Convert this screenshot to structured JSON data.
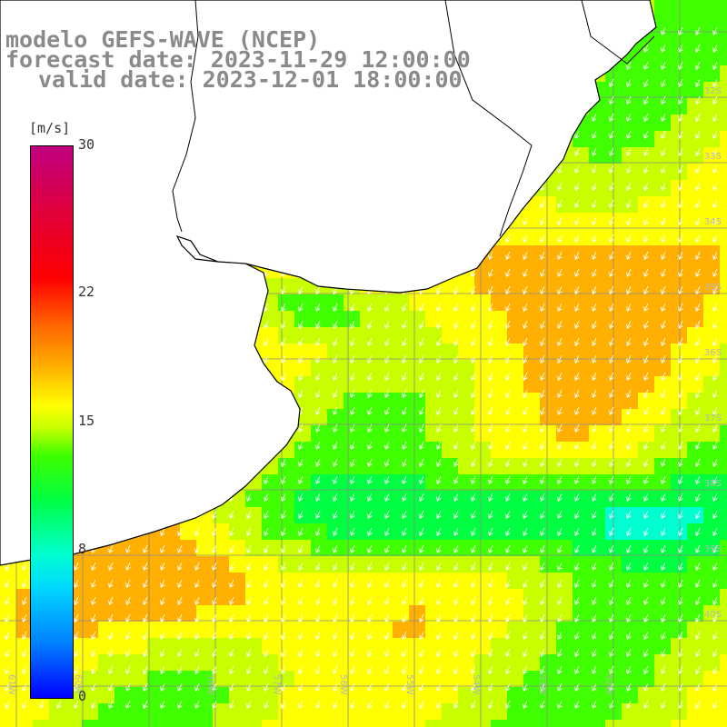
{
  "title": {
    "line1": "modelo GEFS-WAVE (NCEP)",
    "line2": "forecast date: 2023-11-29 12:00:00",
    "line3": "valid date: 2023-12-01 18:00:00"
  },
  "colorbar": {
    "unit": "[m/s]",
    "ticks": [
      {
        "label": "30",
        "value": 30
      },
      {
        "label": "22",
        "value": 22
      },
      {
        "label": "15",
        "value": 15
      },
      {
        "label": "8",
        "value": 8
      },
      {
        "label": "0",
        "value": 0
      }
    ],
    "colors": [
      "#0000ff",
      "#0080ff",
      "#00d8ff",
      "#00ffd0",
      "#00ff40",
      "#40ff00",
      "#c8ff00",
      "#ffff00",
      "#ffb000",
      "#ff6000",
      "#ff0000",
      "#c00080"
    ]
  },
  "map": {
    "lat_labels": [
      {
        "label": "32S",
        "lat": -32
      },
      {
        "label": "33S",
        "lat": -33
      },
      {
        "label": "34S",
        "lat": -34
      },
      {
        "label": "35S",
        "lat": -35
      },
      {
        "label": "36S",
        "lat": -36
      },
      {
        "label": "37S",
        "lat": -37
      },
      {
        "label": "38S",
        "lat": -38
      },
      {
        "label": "39S",
        "lat": -39
      },
      {
        "label": "40S",
        "lat": -40
      }
    ],
    "lon_labels": [
      {
        "label": "61W",
        "lon": -61
      },
      {
        "label": "60W",
        "lon": -60
      },
      {
        "label": "58W",
        "lon": -58
      },
      {
        "label": "57W",
        "lon": -57
      },
      {
        "label": "56W",
        "lon": -56
      },
      {
        "label": "55W",
        "lon": -55
      },
      {
        "label": "54W",
        "lon": -54
      },
      {
        "label": "53W",
        "lon": -53
      },
      {
        "label": "52W",
        "lon": -52
      }
    ],
    "land_color": "#ffffff",
    "coast_color": "#000000",
    "grid_color": "#8a8a8a",
    "arrow_color": "#ffffff",
    "wind_direction": "from north-east"
  }
}
